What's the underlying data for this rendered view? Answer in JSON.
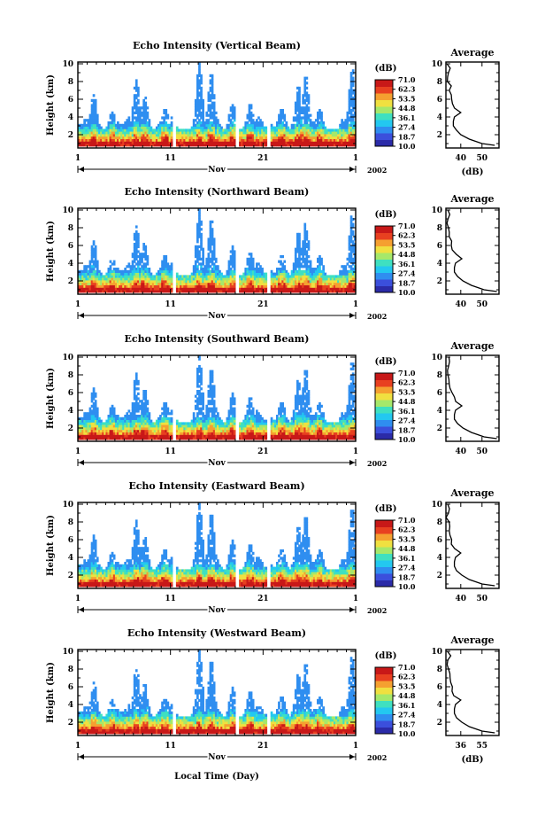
{
  "figure": {
    "xlabel": "Local Time (Day)",
    "month_label": "Nov",
    "year_label": "2002",
    "colorbar_unit": "(dB)",
    "colorbar_ticks": [
      "71.0",
      "62.3",
      "53.5",
      "44.8",
      "36.1",
      "27.4",
      "18.7",
      "10.0"
    ],
    "colors": {
      "colormap": [
        "#2b2ba8",
        "#3b4fdc",
        "#2f8ef0",
        "#23c8f0",
        "#3fe0c0",
        "#a6e86a",
        "#f0e040",
        "#f5a030",
        "#e84020",
        "#c81818"
      ],
      "frame": "#000000",
      "background": "#ffffff"
    }
  },
  "chart_data": [
    {
      "type": "heatmap",
      "title": "Echo Intensity (Vertical Beam)",
      "ylabel": "Height (km)",
      "xlim": [
        1,
        31
      ],
      "ylim": [
        0.5,
        10.2
      ],
      "x_ticks": [
        "1",
        "11",
        "21",
        "1"
      ],
      "y_ticks": [
        "2",
        "4",
        "6",
        "8",
        "10"
      ],
      "colorbar_range": [
        10.0,
        71.0
      ],
      "average_profile": {
        "title": "Average",
        "xlabel": "(dB)",
        "x_ticks": [
          "40",
          "50"
        ],
        "xlim": [
          33,
          58
        ],
        "height_km": [
          0.8,
          1.0,
          1.5,
          2.0,
          2.5,
          3.0,
          3.5,
          4.0,
          4.5,
          5.0,
          5.5,
          6.0,
          6.5,
          7.0,
          7.5,
          8.0,
          8.5,
          9.0,
          9.5,
          10.0
        ],
        "db": [
          56,
          50,
          44,
          40,
          38,
          36.5,
          36.5,
          37,
          40,
          37,
          36,
          36,
          35,
          34.5,
          35,
          34,
          33.5,
          34,
          35,
          34
        ]
      }
    },
    {
      "type": "heatmap",
      "title": "Echo Intensity (Northward Beam)",
      "ylabel": "Height (km)",
      "xlim": [
        1,
        31
      ],
      "ylim": [
        0.5,
        10.2
      ],
      "x_ticks": [
        "1",
        "11",
        "21",
        "1"
      ],
      "y_ticks": [
        "2",
        "4",
        "6",
        "8",
        "10"
      ],
      "colorbar_range": [
        10.0,
        71.0
      ],
      "average_profile": {
        "title": "Average",
        "xlabel": "",
        "x_ticks": [
          "40",
          "50"
        ],
        "xlim": [
          33,
          58
        ],
        "height_km": [
          0.8,
          1.0,
          1.5,
          2.0,
          2.5,
          3.0,
          3.5,
          4.0,
          4.5,
          5.0,
          5.5,
          6.0,
          6.5,
          7.0,
          7.5,
          8.0,
          8.5,
          9.0,
          9.5,
          10.0
        ],
        "db": [
          57,
          51,
          45,
          41,
          38.5,
          37,
          37,
          37.5,
          40.5,
          37.5,
          36.5,
          36,
          35.5,
          35,
          35,
          34.5,
          34,
          34,
          35,
          34
        ]
      }
    },
    {
      "type": "heatmap",
      "title": "Echo Intensity (Southward Beam)",
      "ylabel": "Height (km)",
      "xlim": [
        1,
        31
      ],
      "ylim": [
        0.5,
        10.2
      ],
      "x_ticks": [
        "1",
        "11",
        "21",
        "1"
      ],
      "y_ticks": [
        "2",
        "4",
        "6",
        "8",
        "10"
      ],
      "colorbar_range": [
        10.0,
        71.0
      ],
      "average_profile": {
        "title": "Average",
        "xlabel": "",
        "x_ticks": [
          "40",
          "50"
        ],
        "xlim": [
          33,
          58
        ],
        "height_km": [
          0.8,
          1.0,
          1.5,
          2.0,
          2.5,
          3.0,
          3.5,
          4.0,
          4.5,
          5.0,
          5.5,
          6.0,
          6.5,
          7.0,
          7.5,
          8.0,
          8.5,
          9.0,
          9.5,
          10.0
        ],
        "db": [
          57,
          51,
          45,
          41,
          38.5,
          37,
          37,
          37.5,
          40.5,
          37.5,
          36.5,
          36,
          35.5,
          35,
          35,
          34.5,
          34,
          34,
          35,
          34
        ]
      }
    },
    {
      "type": "heatmap",
      "title": "Echo Intensity (Eastward Beam)",
      "ylabel": "Height (km)",
      "xlim": [
        1,
        31
      ],
      "ylim": [
        0.5,
        10.2
      ],
      "x_ticks": [
        "1",
        "11",
        "21",
        "1"
      ],
      "y_ticks": [
        "2",
        "4",
        "6",
        "8",
        "10"
      ],
      "colorbar_range": [
        10.0,
        71.0
      ],
      "average_profile": {
        "title": "Average",
        "xlabel": "",
        "x_ticks": [
          "40",
          "50"
        ],
        "xlim": [
          33,
          58
        ],
        "height_km": [
          0.8,
          1.0,
          1.5,
          2.0,
          2.5,
          3.0,
          3.5,
          4.0,
          4.5,
          5.0,
          5.5,
          6.0,
          6.5,
          7.0,
          7.5,
          8.0,
          8.5,
          9.0,
          9.5,
          10.0
        ],
        "db": [
          56,
          50,
          44,
          40.5,
          38,
          37,
          37,
          37.5,
          40,
          37,
          36,
          35.5,
          35,
          34.5,
          35,
          34,
          33.5,
          34,
          35,
          34
        ]
      }
    },
    {
      "type": "heatmap",
      "title": "Echo Intensity (Westward Beam)",
      "ylabel": "Height (km)",
      "xlim": [
        1,
        31
      ],
      "ylim": [
        0.5,
        10.2
      ],
      "x_ticks": [
        "1",
        "11",
        "21",
        "1"
      ],
      "y_ticks": [
        "2",
        "4",
        "6",
        "8",
        "10"
      ],
      "colorbar_range": [
        10.0,
        71.0
      ],
      "average_profile": {
        "title": "Average",
        "xlabel": "(dB)",
        "x_ticks": [
          "36",
          "55"
        ],
        "xlim": [
          33,
          58
        ],
        "height_km": [
          0.8,
          1.0,
          1.5,
          2.0,
          2.5,
          3.0,
          3.5,
          4.0,
          4.5,
          5.0,
          5.5,
          6.0,
          6.5,
          7.0,
          7.5,
          8.0,
          8.5,
          9.0,
          9.5,
          10.0
        ],
        "db": [
          56,
          50,
          44,
          40.5,
          38,
          37,
          37,
          37.5,
          40,
          37,
          36,
          35.5,
          35,
          34.5,
          35,
          34,
          33.5,
          34,
          35,
          34
        ]
      }
    }
  ]
}
